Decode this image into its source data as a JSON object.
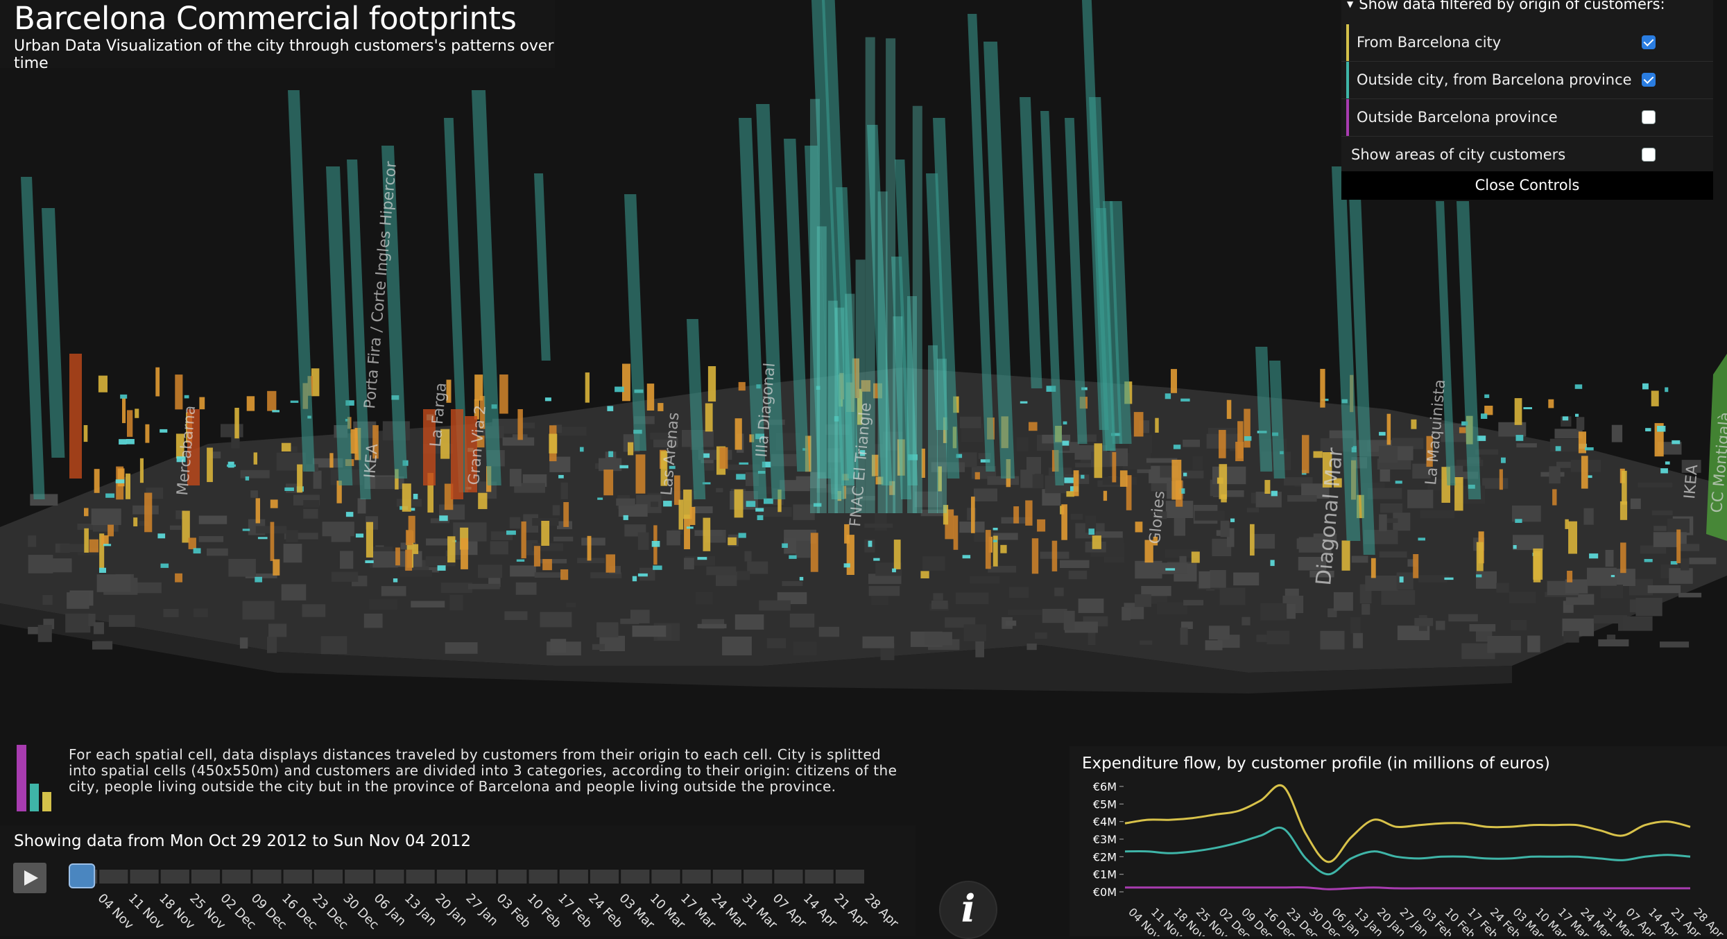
{
  "header": {
    "title": "Barcelona Commercial footprints",
    "subtitle": "Urban Data Visualization of the city through customers's patterns over time"
  },
  "controls": {
    "header": "Show data filtered by origin of customers:",
    "items": [
      {
        "label": "From Barcelona city",
        "checked": true,
        "color": "#d4c14a"
      },
      {
        "label": "Outside city, from Barcelona province",
        "checked": true,
        "color": "#3fb5a8"
      },
      {
        "label": "Outside Barcelona province",
        "checked": false,
        "color": "#a83cb0"
      },
      {
        "label": "Show areas of city customers",
        "checked": false,
        "color": ""
      }
    ],
    "close_label": "Close Controls"
  },
  "map_labels": [
    "Mercabarna",
    "IKEA",
    "Porta Fira / Corte Ingles Hipercor",
    "La Farga",
    "Gran Via 2",
    "Las Arenas",
    "Illa Diagonal",
    "FNAC El Triangle",
    "Glories",
    "Diagonal Mar",
    "La Maquinista",
    "IKEA",
    "CC Montigalà"
  ],
  "description": "For each spatial cell, data displays distances traveled by customers from their origin to each cell. City is splitted into spatial cells (450x550m) and customers are divided into 3 categories, according to their origin: citizens of the city, people living outside the city but in the province of Barcelona and people living outside the province.",
  "timeline": {
    "showing": "Showing data from Mon Oct 29 2012 to Sun Nov 04 2012",
    "ticks": [
      "04 Nov",
      "11 Nov",
      "18 Nov",
      "25 Nov",
      "02 Dec",
      "09 Dec",
      "16 Dec",
      "23 Dec",
      "30 Dec",
      "06 Jan",
      "13 Jan",
      "20 Jan",
      "27 Jan",
      "03 Feb",
      "10 Feb",
      "17 Feb",
      "24 Feb",
      "03 Mar",
      "10 Mar",
      "17 Mar",
      "24 Mar",
      "31 Mar",
      "07 Apr",
      "14 Apr",
      "21 Apr",
      "28 Apr"
    ],
    "selected_index": 0
  },
  "info_label": "i",
  "chart_data": {
    "type": "line",
    "title": "Expenditure flow, by customer profile (in millions of euros)",
    "y_ticks": [
      "€0M",
      "€1M",
      "€2M",
      "€3M",
      "€4M",
      "€5M",
      "€6M"
    ],
    "ylim": [
      0,
      6
    ],
    "x": [
      "04 Nov",
      "11 Nov",
      "18 Nov",
      "25 Nov",
      "02 Dec",
      "09 Dec",
      "16 Dec",
      "23 Dec",
      "30 Dec",
      "06 Jan",
      "13 Jan",
      "20 Jan",
      "27 Jan",
      "03 Feb",
      "10 Feb",
      "17 Feb",
      "24 Feb",
      "03 Mar",
      "10 Mar",
      "17 Mar",
      "24 Mar",
      "31 Mar",
      "07 Apr",
      "14 Apr",
      "21 Apr",
      "28 Apr"
    ],
    "series": [
      {
        "color": "#d8c24a",
        "values": [
          3.9,
          4.1,
          4.1,
          4.2,
          4.4,
          4.6,
          5.2,
          6.0,
          3.3,
          1.7,
          3.1,
          4.1,
          3.7,
          3.8,
          3.9,
          3.9,
          3.7,
          3.7,
          3.8,
          3.8,
          3.8,
          3.5,
          3.2,
          3.8,
          4.0,
          3.7
        ]
      },
      {
        "color": "#3fb5a8",
        "values": [
          2.3,
          2.3,
          2.2,
          2.3,
          2.5,
          2.8,
          3.2,
          3.6,
          1.9,
          1.0,
          1.9,
          2.3,
          2.0,
          1.9,
          2.0,
          2.0,
          1.9,
          1.9,
          2.0,
          2.0,
          2.0,
          1.9,
          1.8,
          2.0,
          2.1,
          2.0
        ]
      },
      {
        "color": "#a83cb0",
        "values": [
          0.25,
          0.25,
          0.25,
          0.25,
          0.25,
          0.25,
          0.25,
          0.25,
          0.25,
          0.15,
          0.2,
          0.25,
          0.2,
          0.2,
          0.2,
          0.2,
          0.2,
          0.2,
          0.2,
          0.2,
          0.2,
          0.2,
          0.2,
          0.2,
          0.2,
          0.2
        ]
      }
    ]
  },
  "colors": {
    "background": "#141414",
    "city": "#d4c14a",
    "province": "#3fb5a8",
    "outside": "#a83cb0",
    "orange_bar": "#c96a1e"
  }
}
